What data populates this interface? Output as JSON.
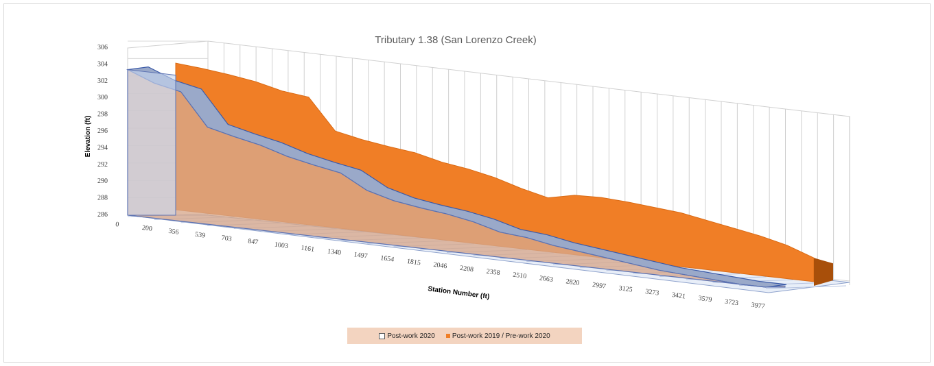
{
  "chart_data": {
    "type": "area",
    "title": "Tributary 1.38 (San Lorenzo Creek)",
    "xlabel": "Station Number (ft)",
    "ylabel": "Elevation (ft)",
    "ylim": [
      286,
      306
    ],
    "y_ticks": [
      "286",
      "288",
      "290",
      "292",
      "294",
      "296",
      "298",
      "300",
      "302",
      "304",
      "306"
    ],
    "categories": [
      "0",
      "200",
      "356",
      "539",
      "703",
      "847",
      "1003",
      "1161",
      "1340",
      "1497",
      "1654",
      "1815",
      "2046",
      "2208",
      "2358",
      "2510",
      "2663",
      "2820",
      "2997",
      "3125",
      "3273",
      "3421",
      "3579",
      "3723",
      "3977"
    ],
    "series": [
      {
        "name": "Post-work 2020",
        "color": "#dbe5f5",
        "values": [
          304,
          302.7,
          302,
          298,
          297.2,
          296.5,
          295.5,
          294.8,
          294.2,
          292.4,
          291.5,
          291,
          290.6,
          290,
          289.1,
          288.8,
          288.2,
          287.8,
          287.4,
          287,
          286.6,
          286.4,
          286.2,
          286,
          286
        ]
      },
      {
        "name": "Post-work 2019 / Pre-work 2020",
        "color": "#f07e26",
        "values": [
          304.5,
          304.2,
          303.8,
          303.3,
          302.5,
          302.1,
          298.2,
          297.5,
          297,
          296.6,
          295.8,
          295.3,
          294.6,
          293.6,
          292.8,
          293.5,
          293.6,
          293.4,
          293.1,
          292.8,
          292.2,
          291.6,
          291,
          290.2,
          289
        ]
      }
    ],
    "grid": true,
    "legend_position": "bottom"
  }
}
